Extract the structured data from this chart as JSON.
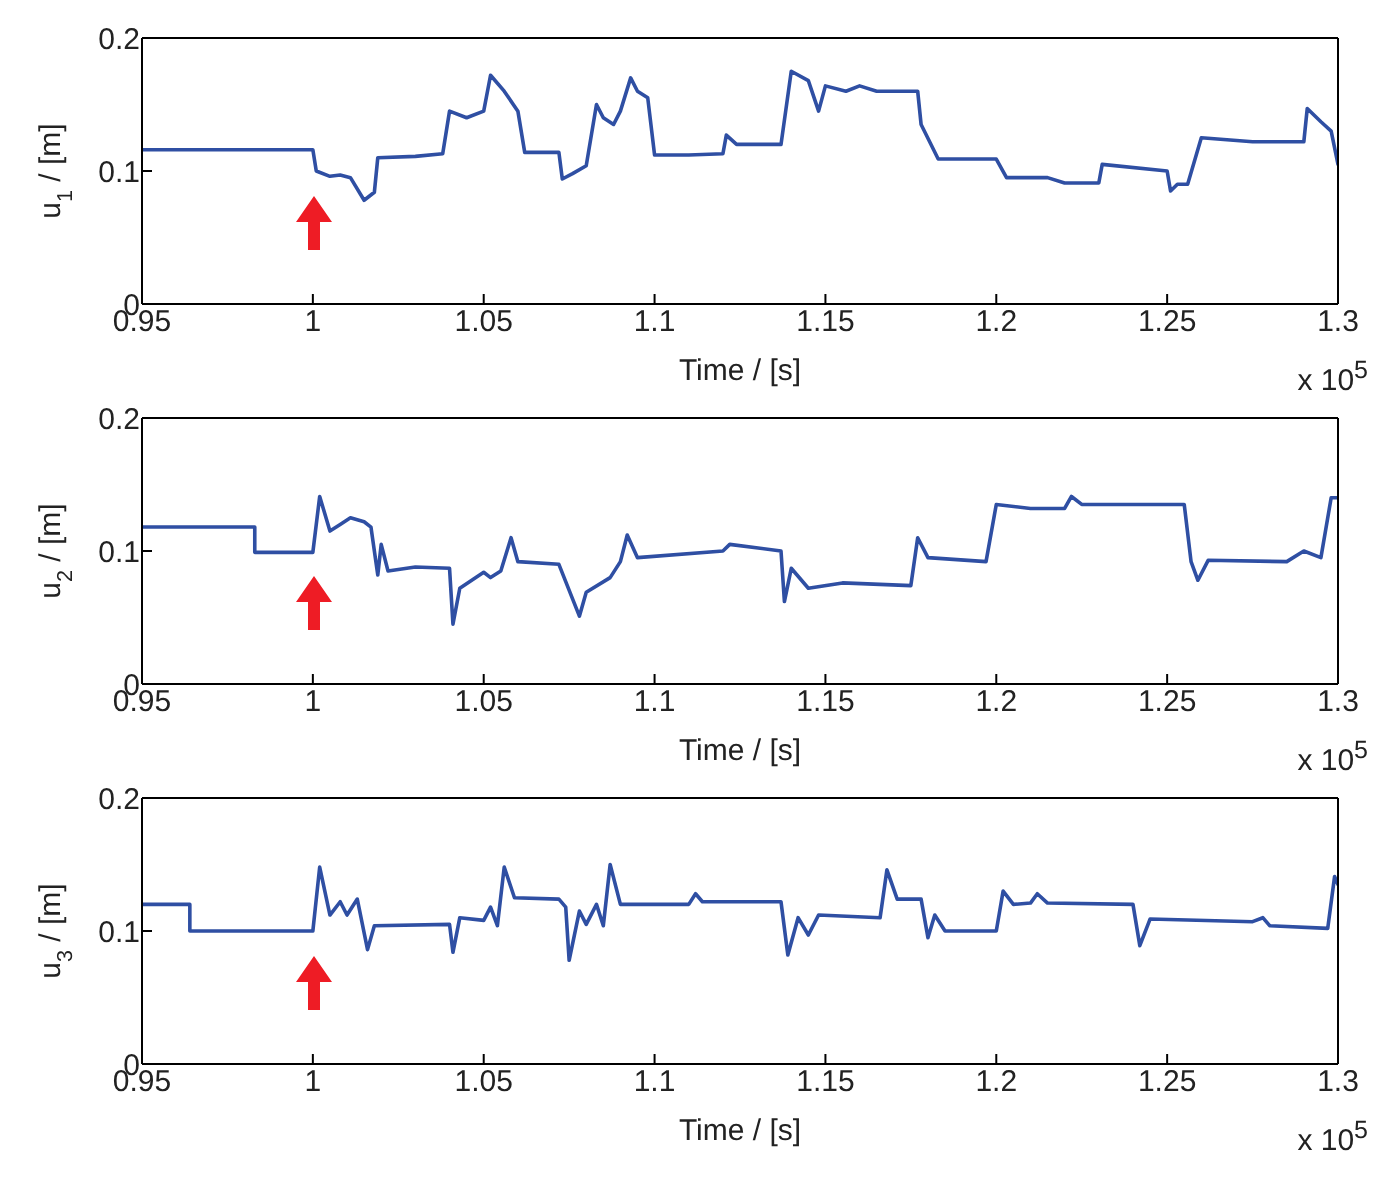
{
  "chart_data": [
    {
      "type": "line",
      "xlabel": "Time / [s]",
      "ylabel": "u$_{1}$ / [m]",
      "annotations": [
        "x 10$^{5}$"
      ],
      "color": "#2f4fa3",
      "xlim": [
        0.95,
        1.3
      ],
      "xticks": [
        0.95,
        1,
        1.05,
        1.1,
        1.15,
        1.2,
        1.25,
        1.3
      ],
      "ylim": [
        0,
        0.2
      ],
      "yticks": [
        0,
        0.1,
        0.2
      ],
      "x": [
        0.95,
        1.0,
        1.001,
        1.005,
        1.008,
        1.011,
        1.015,
        1.018,
        1.019,
        1.03,
        1.038,
        1.04,
        1.045,
        1.05,
        1.052,
        1.056,
        1.06,
        1.062,
        1.067,
        1.072,
        1.073,
        1.076,
        1.08,
        1.083,
        1.085,
        1.088,
        1.09,
        1.093,
        1.095,
        1.098,
        1.1,
        1.11,
        1.12,
        1.121,
        1.124,
        1.137,
        1.14,
        1.145,
        1.148,
        1.15,
        1.156,
        1.16,
        1.165,
        1.177,
        1.178,
        1.183,
        1.2,
        1.203,
        1.215,
        1.22,
        1.23,
        1.231,
        1.25,
        1.251,
        1.253,
        1.256,
        1.26,
        1.275,
        1.29,
        1.291,
        1.295,
        1.298,
        1.3
      ],
      "values": [
        0.116,
        0.116,
        0.1,
        0.096,
        0.097,
        0.095,
        0.078,
        0.084,
        0.11,
        0.111,
        0.113,
        0.145,
        0.14,
        0.145,
        0.172,
        0.16,
        0.145,
        0.114,
        0.114,
        0.114,
        0.094,
        0.098,
        0.104,
        0.15,
        0.14,
        0.135,
        0.145,
        0.17,
        0.16,
        0.155,
        0.112,
        0.112,
        0.113,
        0.127,
        0.12,
        0.12,
        0.175,
        0.168,
        0.145,
        0.164,
        0.16,
        0.164,
        0.16,
        0.16,
        0.135,
        0.109,
        0.109,
        0.095,
        0.095,
        0.091,
        0.091,
        0.105,
        0.1,
        0.085,
        0.09,
        0.09,
        0.125,
        0.122,
        0.122,
        0.147,
        0.137,
        0.13,
        0.105
      ]
    },
    {
      "type": "line",
      "xlabel": "Time / [s]",
      "ylabel": "u$_{2}$ / [m]",
      "annotations": [
        "x 10$^{5}$"
      ],
      "color": "#2f4fa3",
      "xlim": [
        0.95,
        1.3
      ],
      "xticks": [
        0.95,
        1,
        1.05,
        1.1,
        1.15,
        1.2,
        1.25,
        1.3
      ],
      "ylim": [
        0,
        0.2
      ],
      "yticks": [
        0,
        0.1,
        0.2
      ],
      "x": [
        0.95,
        0.983,
        0.983,
        1.0,
        1.002,
        1.005,
        1.008,
        1.011,
        1.015,
        1.017,
        1.019,
        1.02,
        1.022,
        1.03,
        1.04,
        1.041,
        1.043,
        1.05,
        1.052,
        1.055,
        1.058,
        1.06,
        1.072,
        1.078,
        1.08,
        1.087,
        1.09,
        1.092,
        1.095,
        1.12,
        1.122,
        1.137,
        1.138,
        1.14,
        1.145,
        1.155,
        1.175,
        1.177,
        1.18,
        1.197,
        1.2,
        1.21,
        1.22,
        1.222,
        1.225,
        1.255,
        1.257,
        1.259,
        1.262,
        1.285,
        1.29,
        1.295,
        1.298,
        1.3
      ],
      "values": [
        0.118,
        0.118,
        0.099,
        0.099,
        0.141,
        0.115,
        0.12,
        0.125,
        0.122,
        0.118,
        0.082,
        0.105,
        0.085,
        0.088,
        0.087,
        0.045,
        0.072,
        0.084,
        0.08,
        0.085,
        0.11,
        0.092,
        0.09,
        0.051,
        0.069,
        0.08,
        0.092,
        0.112,
        0.095,
        0.1,
        0.105,
        0.1,
        0.062,
        0.087,
        0.072,
        0.076,
        0.074,
        0.11,
        0.095,
        0.092,
        0.135,
        0.132,
        0.132,
        0.141,
        0.135,
        0.135,
        0.092,
        0.078,
        0.093,
        0.092,
        0.1,
        0.095,
        0.14,
        0.14
      ]
    },
    {
      "type": "line",
      "xlabel": "Time / [s]",
      "ylabel": "u$_{3}$ / [m]",
      "annotations": [
        "x 10$^{5}$"
      ],
      "color": "#2f4fa3",
      "xlim": [
        0.95,
        1.3
      ],
      "xticks": [
        0.95,
        1,
        1.05,
        1.1,
        1.15,
        1.2,
        1.25,
        1.3
      ],
      "ylim": [
        0,
        0.2
      ],
      "yticks": [
        0,
        0.1,
        0.2
      ],
      "x": [
        0.95,
        0.964,
        0.964,
        1.0,
        1.002,
        1.005,
        1.008,
        1.01,
        1.013,
        1.016,
        1.018,
        1.04,
        1.041,
        1.043,
        1.05,
        1.052,
        1.054,
        1.056,
        1.059,
        1.072,
        1.074,
        1.075,
        1.078,
        1.08,
        1.083,
        1.085,
        1.087,
        1.09,
        1.11,
        1.112,
        1.114,
        1.137,
        1.139,
        1.142,
        1.145,
        1.148,
        1.166,
        1.168,
        1.171,
        1.178,
        1.18,
        1.182,
        1.185,
        1.2,
        1.202,
        1.205,
        1.21,
        1.212,
        1.215,
        1.24,
        1.242,
        1.245,
        1.275,
        1.278,
        1.28,
        1.297,
        1.299,
        1.3
      ],
      "values": [
        0.12,
        0.12,
        0.1,
        0.1,
        0.148,
        0.112,
        0.122,
        0.112,
        0.124,
        0.086,
        0.104,
        0.105,
        0.084,
        0.11,
        0.108,
        0.118,
        0.104,
        0.148,
        0.125,
        0.124,
        0.118,
        0.078,
        0.115,
        0.105,
        0.12,
        0.104,
        0.15,
        0.12,
        0.12,
        0.128,
        0.122,
        0.122,
        0.082,
        0.11,
        0.097,
        0.112,
        0.11,
        0.146,
        0.124,
        0.124,
        0.095,
        0.112,
        0.1,
        0.1,
        0.13,
        0.12,
        0.121,
        0.128,
        0.121,
        0.12,
        0.089,
        0.109,
        0.107,
        0.11,
        0.104,
        0.102,
        0.141,
        0.135
      ]
    }
  ]
}
